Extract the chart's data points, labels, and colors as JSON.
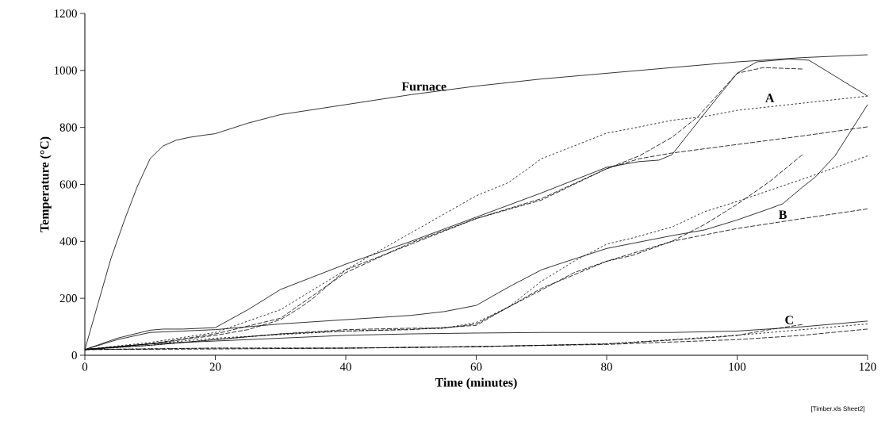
{
  "chart_data": {
    "type": "line",
    "xlabel": "Time (minutes)",
    "ylabel": "Temperature (°C)",
    "xlim": [
      0,
      120
    ],
    "ylim": [
      0,
      1200
    ],
    "xticks": [
      0,
      20,
      40,
      60,
      80,
      100,
      120
    ],
    "yticks": [
      0,
      200,
      400,
      600,
      800,
      1000,
      1200
    ],
    "series": [
      {
        "color": "#000000",
        "line_style": "solid",
        "x": [
          0,
          2,
          4,
          6,
          8,
          10,
          12,
          14,
          16,
          18,
          20,
          25,
          30,
          40,
          50,
          60,
          70,
          80,
          90,
          100,
          110,
          120
        ],
        "values": [
          20,
          180,
          340,
          470,
          590,
          690,
          735,
          755,
          765,
          772,
          778,
          815,
          845,
          880,
          915,
          945,
          970,
          990,
          1010,
          1030,
          1045,
          1055
        ]
      },
      {
        "color": "#000000",
        "line_style": "solid",
        "x": [
          0,
          5,
          10,
          12,
          15,
          20,
          25,
          30,
          40,
          50,
          60,
          70,
          80,
          85,
          88,
          90,
          95,
          100,
          103,
          108,
          111,
          115,
          120
        ],
        "values": [
          20,
          60,
          88,
          92,
          92,
          97,
          160,
          231,
          320,
          400,
          485,
          570,
          660,
          680,
          685,
          704,
          849,
          990,
          1030,
          1040,
          1036,
          980,
          910
        ]
      },
      {
        "color": "#000000",
        "line_style": "dashed",
        "x": [
          0,
          10,
          20,
          25,
          30,
          33,
          35,
          40,
          50,
          60,
          70,
          80,
          85,
          90,
          94,
          100,
          104,
          110
        ],
        "values": [
          20,
          40,
          70,
          90,
          125,
          167,
          200,
          300,
          390,
          480,
          550,
          655,
          700,
          765,
          838,
          990,
          1010,
          1005
        ]
      },
      {
        "color": "#000000",
        "line_style": "dotted",
        "x": [
          0,
          10,
          20,
          30,
          40,
          50,
          60,
          65,
          70,
          80,
          84,
          90,
          95,
          100,
          110,
          120
        ],
        "values": [
          20,
          45,
          80,
          160,
          300,
          430,
          560,
          607,
          690,
          780,
          797,
          825,
          838,
          860,
          885,
          910
        ]
      },
      {
        "color": "#000000",
        "line_style": "dashed",
        "x": [
          0,
          10,
          20,
          30,
          40,
          50,
          60,
          70,
          80,
          85,
          90,
          100,
          110,
          120
        ],
        "values": [
          20,
          40,
          75,
          130,
          290,
          395,
          480,
          545,
          655,
          690,
          710,
          740,
          770,
          802
        ]
      },
      {
        "color": "#000000",
        "line_style": "solid",
        "x": [
          0,
          5,
          10,
          15,
          20,
          30,
          40,
          50,
          55,
          60,
          65,
          70,
          73,
          80,
          84,
          90,
          95,
          100,
          105,
          107,
          110,
          112,
          115,
          120
        ],
        "values": [
          20,
          55,
          80,
          85,
          90,
          110,
          125,
          140,
          153,
          175,
          240,
          300,
          323,
          375,
          393,
          420,
          440,
          475,
          515,
          532,
          590,
          626,
          700,
          880
        ]
      },
      {
        "color": "#000000",
        "line_style": "dashed",
        "x": [
          0,
          10,
          20,
          30,
          40,
          50,
          55,
          60,
          65,
          69,
          75,
          80,
          84,
          90,
          95,
          100,
          105,
          110
        ],
        "values": [
          20,
          35,
          55,
          75,
          90,
          95,
          95,
          110,
          170,
          217,
          290,
          330,
          351,
          400,
          459,
          530,
          610,
          704
        ]
      },
      {
        "color": "#000000",
        "line_style": "dotted",
        "x": [
          0,
          20,
          40,
          55,
          60,
          65,
          70,
          75,
          80,
          84,
          90,
          95,
          100,
          111,
          120
        ],
        "values": [
          20,
          60,
          85,
          95,
          115,
          170,
          260,
          330,
          390,
          412,
          450,
          504,
          540,
          626,
          700
        ]
      },
      {
        "color": "#000000",
        "line_style": "dashed",
        "x": [
          0,
          10,
          20,
          30,
          40,
          50,
          60,
          70,
          80,
          90,
          100,
          110,
          120
        ],
        "values": [
          20,
          35,
          55,
          75,
          85,
          90,
          105,
          235,
          330,
          400,
          445,
          480,
          514
        ]
      },
      {
        "color": "#000000",
        "line_style": "solid",
        "x": [
          0,
          10,
          20,
          30,
          40,
          50,
          60,
          70,
          80,
          90,
          100,
          110,
          120
        ],
        "values": [
          20,
          40,
          50,
          60,
          70,
          75,
          78,
          80,
          80,
          80,
          85,
          100,
          120
        ]
      },
      {
        "color": "#000000",
        "line_style": "dashed",
        "x": [
          0,
          20,
          40,
          60,
          80,
          95,
          100,
          105,
          110
        ],
        "values": [
          20,
          25,
          25,
          30,
          40,
          60,
          70,
          90,
          108
        ]
      },
      {
        "color": "#000000",
        "line_style": "dotted",
        "x": [
          0,
          20,
          40,
          60,
          80,
          100,
          110,
          120
        ],
        "values": [
          20,
          25,
          25,
          30,
          40,
          70,
          90,
          110
        ]
      },
      {
        "color": "#000000",
        "line_style": "dashed",
        "x": [
          0,
          20,
          40,
          60,
          80,
          100,
          110,
          120
        ],
        "values": [
          20,
          22,
          25,
          31,
          38,
          55,
          70,
          92
        ]
      }
    ],
    "annotations": [
      {
        "text": "Furnace",
        "x": 52,
        "y": 920
      },
      {
        "text": "A",
        "x": 105,
        "y": 880
      },
      {
        "text": "B",
        "x": 107,
        "y": 470
      },
      {
        "text": "C",
        "x": 108,
        "y": 100
      },
      "[Timber.xls Sheet2]"
    ]
  }
}
